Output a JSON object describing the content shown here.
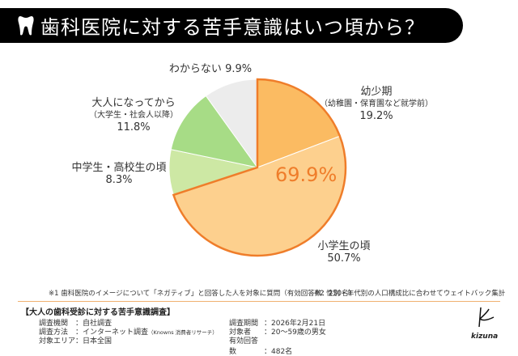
{
  "title": "歯科医院に対する苦手意識はいつ頃から？",
  "chart_data": {
    "type": "pie",
    "title": "歯科医院に対する苦手意識はいつ頃から？",
    "slices": [
      {
        "label": "幼少期",
        "sublabel": "（幼稚園・保育園など就学前）",
        "value": 19.2,
        "value_text": "19.2%",
        "color": "#fbbb62"
      },
      {
        "label": "小学生の頃",
        "sublabel": "",
        "value": 50.7,
        "value_text": "50.7%",
        "color": "#fdd08e"
      },
      {
        "label": "中学生・高校生の頃",
        "sublabel": "",
        "value": 8.3,
        "value_text": "8.3%",
        "color": "#cde8a4"
      },
      {
        "label": "大人になってから",
        "sublabel": "（大学生・社会人以降）",
        "value": 11.8,
        "value_text": "11.8%",
        "color": "#a7dc86"
      },
      {
        "label": "わからない",
        "sublabel": "",
        "value": 9.9,
        "value_text": "9.9%",
        "color": "#ececec"
      }
    ],
    "annotation": "69.9%",
    "highlight_color": "#ef7d2a",
    "start": "12 o'clock, clockwise"
  },
  "notes": {
    "note1": "※1 歯科医院のイメージについて「ネガティブ」と回答した人を対象に質問（有効回答数：250名）",
    "note2": "※2 性別・年代別の人口構成比に合わせてウェイトバック集計"
  },
  "survey": {
    "title": "【大人の歯科受診に対する苦手意識調査】",
    "rows": [
      {
        "k": "調査機関",
        "v": "：自社調査"
      },
      {
        "k": "調査方法",
        "v": "：インターネット調査",
        "v2": "（Knowns 消費者リサーチ）"
      },
      {
        "k": "対象エリア",
        "v": "：日本全国"
      },
      {
        "k": "調査期間",
        "v": "：2026年2月21日"
      },
      {
        "k": "対象者",
        "v": "：20～59歳の男女"
      },
      {
        "k": "有効回答数",
        "v": "：482名"
      }
    ]
  },
  "logo": "kizuna"
}
